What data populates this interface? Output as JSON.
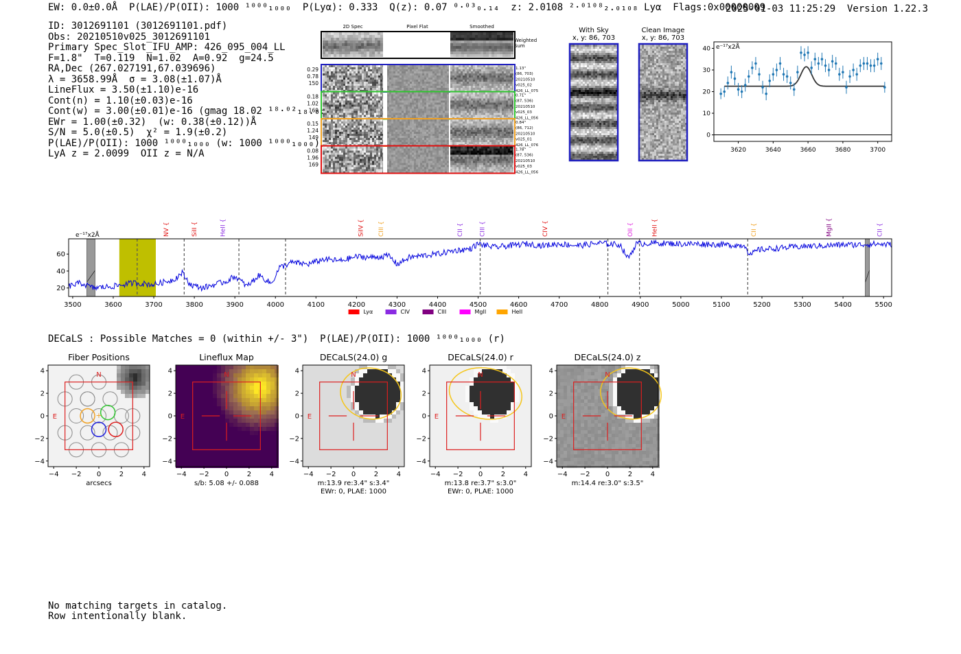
{
  "header": {
    "left": "EW: 0.0±0.0Å  P(LAE)/P(OII): 1000 ¹⁰⁰⁰₁₀₀₀  P(Lyα): 0.333  Q(z): 0.07 ⁰·⁰³₀.₁₄  z: 2.0108 ²·⁰¹⁰⁸₂.₀₁₀₈ Lyα  Flags:0x00000009",
    "right": "2025-01-03 11:25:29  Version 1.22.3"
  },
  "info": {
    "lines": [
      "ID: 3012691101 (3012691101.pdf)",
      "Obs: 20210510v025_3012691101",
      "Primary Spec_Slot_IFU_AMP: 426_095_004_LL",
      "F=1.8\"  T=0.119  N=1.02  A=0.92  g=24.5",
      "RA,Dec (267.027191,67.039696)",
      "λ = 3658.99Å  σ = 3.08(±1.07)Å",
      "LineFlux = 3.50(±1.10)e-16",
      "Cont(n) = 1.10(±0.03)e-16",
      "Cont(w) = 3.00(±0.01)e-16 (gmag 18.02 ¹⁸·⁰²₁₈.₀₂)",
      "EWr = 1.00(±0.32)  (w: 0.38(±0.12))Å",
      "S/N = 5.0(±0.5)  χ² = 1.9(±0.2)",
      "P(LAE)/P(OII): 1000 ¹⁰⁰⁰₁₀₀₀ (w: 1000 ¹⁰⁰⁰₁₀₀₀)",
      "LyA z = 2.0099  OII z = N/A"
    ]
  },
  "cutouts": {
    "col_titles": [
      "2D Spec",
      "Pixel Flat",
      "Smoothed"
    ],
    "weighted_label": "Weighted\nSum",
    "rows": [
      {
        "left": [
          "0.29",
          "0.78",
          "150"
        ],
        "color": "#1f1fbf",
        "right": [
          "1.13\"",
          "(86, 703)",
          "20210510",
          "v025_02",
          "426_LL_075"
        ]
      },
      {
        "left": [
          "0.18",
          "1.02",
          "169"
        ],
        "color": "#2ec52e",
        "right": [
          "0.71\"",
          "(87, 536)",
          "20210510",
          "v025_03",
          "426_LL_056"
        ]
      },
      {
        "left": [
          "0.15",
          "1.24",
          "149"
        ],
        "color": "#f0a020",
        "right": [
          "0.84\"",
          "(86, 712)",
          "20210510",
          "v025_01",
          "426_LL_076"
        ]
      },
      {
        "left": [
          "0.08",
          "1.96",
          "169"
        ],
        "color": "#e01010",
        "right": [
          "1.78\"",
          "(87, 536)",
          "20210510",
          "v025_03",
          "426_LL_056"
        ]
      }
    ]
  },
  "sky_panels": {
    "with_sky": {
      "title": "With Sky",
      "subtitle": "x, y: 86, 703"
    },
    "clean": {
      "title": "Clean Image",
      "subtitle": "x, y: 86, 703"
    }
  },
  "chart_data": [
    {
      "type": "scatter",
      "title": "",
      "ylabel_text": "e⁻¹⁷x2Å",
      "xlim": [
        3606,
        3708
      ],
      "ylim": [
        -3,
        43
      ],
      "x_ticks": [
        3620,
        3640,
        3660,
        3680,
        3700
      ],
      "y_ticks": [
        0,
        10,
        20,
        30,
        40
      ],
      "points": [
        [
          3610,
          19,
          2.5
        ],
        [
          3612,
          20,
          2.5
        ],
        [
          3614,
          24,
          3
        ],
        [
          3616,
          29,
          3
        ],
        [
          3618,
          26,
          3
        ],
        [
          3620,
          21,
          3
        ],
        [
          3622,
          20,
          3
        ],
        [
          3624,
          23,
          3
        ],
        [
          3626,
          27,
          3
        ],
        [
          3628,
          31,
          3
        ],
        [
          3630,
          33,
          3
        ],
        [
          3632,
          28,
          3
        ],
        [
          3634,
          22,
          3
        ],
        [
          3636,
          19,
          3
        ],
        [
          3638,
          25,
          3
        ],
        [
          3640,
          28,
          3
        ],
        [
          3642,
          30,
          3
        ],
        [
          3644,
          33,
          3
        ],
        [
          3646,
          28,
          3
        ],
        [
          3648,
          27,
          3
        ],
        [
          3650,
          24,
          3
        ],
        [
          3652,
          21,
          3
        ],
        [
          3654,
          29,
          3
        ],
        [
          3656,
          38,
          3
        ],
        [
          3658,
          37,
          3
        ],
        [
          3660,
          38,
          3
        ],
        [
          3662,
          31,
          3
        ],
        [
          3664,
          35,
          3
        ],
        [
          3666,
          33,
          3
        ],
        [
          3668,
          35,
          3
        ],
        [
          3670,
          32,
          3
        ],
        [
          3672,
          30,
          3
        ],
        [
          3674,
          34,
          3
        ],
        [
          3676,
          33,
          3
        ],
        [
          3678,
          28,
          3
        ],
        [
          3680,
          29,
          3
        ],
        [
          3682,
          22,
          3
        ],
        [
          3684,
          27,
          3
        ],
        [
          3686,
          30,
          3
        ],
        [
          3688,
          28,
          3
        ],
        [
          3690,
          32,
          3
        ],
        [
          3692,
          33,
          3
        ],
        [
          3694,
          33,
          3
        ],
        [
          3696,
          32,
          3
        ],
        [
          3698,
          32,
          3
        ],
        [
          3700,
          35,
          3
        ],
        [
          3702,
          33,
          3
        ],
        [
          3704,
          22,
          2.5
        ]
      ],
      "model": {
        "continuum": 22.5,
        "amplitude": 9,
        "center": 3658.99,
        "sigma": 3.08
      }
    },
    {
      "type": "line",
      "title": "",
      "ylabel_text": "e⁻¹⁷x2Å",
      "xlim": [
        3490,
        5520
      ],
      "ylim": [
        10,
        78
      ],
      "x_ticks": [
        3500,
        3600,
        3700,
        3800,
        3900,
        4000,
        4100,
        4200,
        4300,
        4400,
        4500,
        4600,
        4700,
        4800,
        4900,
        5000,
        5100,
        5200,
        5300,
        5400,
        5500
      ],
      "y_ticks": [
        20,
        40,
        60
      ],
      "anchors": [
        [
          3490,
          22
        ],
        [
          3520,
          26
        ],
        [
          3550,
          20
        ],
        [
          3600,
          22
        ],
        [
          3650,
          26
        ],
        [
          3700,
          24
        ],
        [
          3750,
          30
        ],
        [
          3770,
          38
        ],
        [
          3790,
          24
        ],
        [
          3820,
          20
        ],
        [
          3850,
          24
        ],
        [
          3880,
          28
        ],
        [
          3900,
          34
        ],
        [
          3930,
          22
        ],
        [
          3960,
          35
        ],
        [
          3990,
          25
        ],
        [
          4010,
          44
        ],
        [
          4040,
          50
        ],
        [
          4080,
          48
        ],
        [
          4120,
          54
        ],
        [
          4160,
          52
        ],
        [
          4200,
          57
        ],
        [
          4240,
          56
        ],
        [
          4280,
          58
        ],
        [
          4300,
          48
        ],
        [
          4330,
          56
        ],
        [
          4360,
          58
        ],
        [
          4400,
          60
        ],
        [
          4440,
          64
        ],
        [
          4480,
          66
        ],
        [
          4500,
          72
        ],
        [
          4540,
          68
        ],
        [
          4580,
          70
        ],
        [
          4620,
          72
        ],
        [
          4660,
          70
        ],
        [
          4700,
          72
        ],
        [
          4750,
          70
        ],
        [
          4800,
          73
        ],
        [
          4850,
          71
        ],
        [
          4870,
          55
        ],
        [
          4890,
          72
        ],
        [
          4940,
          73
        ],
        [
          5000,
          72
        ],
        [
          5050,
          72
        ],
        [
          5100,
          71
        ],
        [
          5160,
          70
        ],
        [
          5170,
          58
        ],
        [
          5190,
          65
        ],
        [
          5240,
          67
        ],
        [
          5300,
          69
        ],
        [
          5360,
          70
        ],
        [
          5400,
          71
        ],
        [
          5440,
          71
        ],
        [
          5480,
          72
        ],
        [
          5520,
          71
        ]
      ],
      "dashed_lines": [
        3659,
        3775,
        3910,
        4025,
        4505,
        4820,
        4898,
        5165
      ],
      "bad_regions": [
        [
          3535,
          3555
        ],
        [
          5455,
          5465
        ]
      ],
      "highlight_region": [
        3615,
        3705
      ],
      "line_labels": [
        {
          "text": "NV",
          "x": 3730,
          "color": "#e01010"
        },
        {
          "text": "SiII",
          "x": 3800,
          "color": "#e01010"
        },
        {
          "text": "HeII",
          "x": 3870,
          "color": "#8a2be2"
        },
        {
          "text": "SiIV",
          "x": 4210,
          "color": "#e01010"
        },
        {
          "text": "CIII",
          "x": 4260,
          "color": "#f0a020"
        },
        {
          "text": "CII",
          "x": 4455,
          "color": "#8a2be2"
        },
        {
          "text": "CIII",
          "x": 4510,
          "color": "#8a2be2"
        },
        {
          "text": "CIV",
          "x": 4665,
          "color": "#e01010"
        },
        {
          "text": "OII",
          "x": 4875,
          "color": "#e020e0"
        },
        {
          "text": "HeII",
          "x": 4935,
          "color": "#e01010"
        },
        {
          "text": "CII",
          "x": 5180,
          "color": "#f0a020"
        },
        {
          "text": "MgII",
          "x": 5365,
          "color": "#800080"
        },
        {
          "text": "CII",
          "x": 5490,
          "color": "#8a2be2"
        }
      ],
      "legend": [
        {
          "name": "Lyα",
          "color": "#ff0000"
        },
        {
          "name": "CIV",
          "color": "#8a2be2"
        },
        {
          "name": "CIII",
          "color": "#800080"
        },
        {
          "name": "MgII",
          "color": "#ff00ff"
        },
        {
          "name": "HeII",
          "color": "#ffa500"
        }
      ],
      "legend_placement": "bottom-center"
    }
  ],
  "decals": {
    "summary": "DECaLS : Possible Matches = 0 (within +/- 3\")  P(LAE)/P(OII): 1000 ¹⁰⁰⁰₁₀₀₀ (r)",
    "axis_ticks": [
      -4,
      -2,
      0,
      2,
      4
    ],
    "panels": [
      {
        "title": "Fiber Positions",
        "caption1": "arcsecs",
        "caption2": ""
      },
      {
        "title": "Lineflux Map",
        "caption1": "s/b: 5.08 +/- 0.088",
        "caption2": ""
      },
      {
        "title": "DECaLS(24.0) g",
        "caption1": "m:13.9  re:3.4\"  s:3.4\"",
        "caption2": "EWr: 0, PLAE: 1000"
      },
      {
        "title": "DECaLS(24.0) r",
        "caption1": "m:13.8  re:3.7\"  s:3.0\"",
        "caption2": "EWr: 0, PLAE: 1000"
      },
      {
        "title": "DECaLS(24.0) z",
        "caption1": "m:14.4  re:3.0\"  s:3.5\"",
        "caption2": ""
      }
    ],
    "compass_n": "N",
    "compass_e": "E"
  },
  "footer": {
    "lines": [
      "No matching targets in catalog.",
      "Row intentionally blank."
    ]
  }
}
